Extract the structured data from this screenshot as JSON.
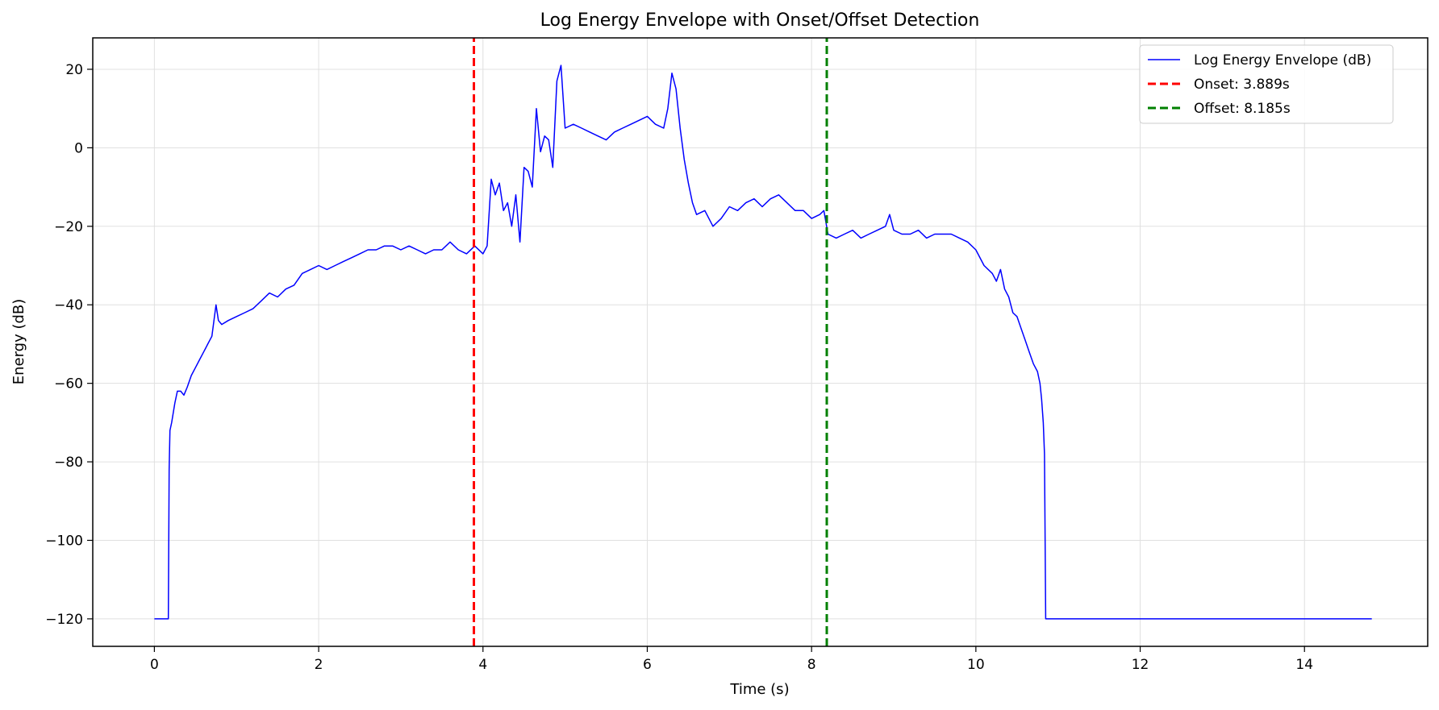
{
  "chart_data": {
    "type": "line",
    "title": "Log Energy Envelope with Onset/Offset Detection",
    "xlabel": "Time (s)",
    "ylabel": "Energy (dB)",
    "xlim": [
      -0.75,
      15.5
    ],
    "ylim": [
      -127,
      28
    ],
    "xticks": [
      0,
      2,
      4,
      6,
      8,
      10,
      12,
      14
    ],
    "xtick_labels": [
      "0",
      "2",
      "4",
      "6",
      "8",
      "10",
      "12",
      "14"
    ],
    "yticks": [
      20,
      0,
      -20,
      -40,
      -60,
      -80,
      -100,
      -120
    ],
    "ytick_labels": [
      "20",
      "0",
      "−20",
      "−40",
      "−60",
      "−80",
      "−100",
      "−120"
    ],
    "grid": true,
    "legend_position": "top-right",
    "colors": {
      "envelope": "#0000ff",
      "onset": "#ff0000",
      "offset": "#008000",
      "grid": "#e0e0e0",
      "axis": "#000000"
    },
    "series": [
      {
        "name": "Log Energy Envelope (dB)",
        "style": "solid",
        "x": [
          0,
          0.17,
          0.18,
          0.19,
          0.21,
          0.25,
          0.28,
          0.32,
          0.36,
          0.4,
          0.45,
          0.5,
          0.55,
          0.6,
          0.65,
          0.7,
          0.75,
          0.78,
          0.82,
          0.9,
          1.0,
          1.1,
          1.2,
          1.3,
          1.4,
          1.5,
          1.6,
          1.7,
          1.8,
          1.9,
          2.0,
          2.1,
          2.2,
          2.3,
          2.4,
          2.5,
          2.6,
          2.7,
          2.8,
          2.9,
          3.0,
          3.1,
          3.2,
          3.3,
          3.4,
          3.5,
          3.6,
          3.7,
          3.8,
          3.9,
          4.0,
          4.05,
          4.1,
          4.15,
          4.2,
          4.25,
          4.3,
          4.35,
          4.4,
          4.45,
          4.5,
          4.55,
          4.6,
          4.65,
          4.7,
          4.75,
          4.8,
          4.85,
          4.9,
          4.95,
          5.0,
          5.1,
          5.2,
          5.3,
          5.4,
          5.5,
          5.6,
          5.7,
          5.8,
          5.9,
          6.0,
          6.1,
          6.2,
          6.25,
          6.3,
          6.35,
          6.4,
          6.45,
          6.5,
          6.55,
          6.6,
          6.7,
          6.8,
          6.9,
          7.0,
          7.1,
          7.2,
          7.3,
          7.4,
          7.5,
          7.6,
          7.7,
          7.8,
          7.9,
          8.0,
          8.1,
          8.15,
          8.2,
          8.3,
          8.4,
          8.5,
          8.6,
          8.7,
          8.8,
          8.9,
          8.95,
          9.0,
          9.1,
          9.2,
          9.3,
          9.4,
          9.5,
          9.6,
          9.7,
          9.8,
          9.9,
          10.0,
          10.1,
          10.2,
          10.25,
          10.3,
          10.35,
          10.4,
          10.45,
          10.5,
          10.55,
          10.6,
          10.65,
          10.7,
          10.75,
          10.78,
          10.8,
          10.82,
          10.835,
          10.85,
          11.0,
          12.0,
          13.0,
          14.0,
          14.82
        ],
        "y": [
          -120,
          -120,
          -82,
          -72,
          -70,
          -65,
          -62,
          -62,
          -63,
          -61,
          -58,
          -56,
          -54,
          -52,
          -50,
          -48,
          -40,
          -44,
          -45,
          -44,
          -43,
          -42,
          -41,
          -39,
          -37,
          -38,
          -36,
          -35,
          -32,
          -31,
          -30,
          -31,
          -30,
          -29,
          -28,
          -27,
          -26,
          -26,
          -25,
          -25,
          -26,
          -25,
          -26,
          -27,
          -26,
          -26,
          -24,
          -26,
          -27,
          -25,
          -27,
          -25,
          -8,
          -12,
          -9,
          -16,
          -14,
          -20,
          -12,
          -24,
          -5,
          -6,
          -10,
          10,
          -1,
          3,
          2,
          -5,
          17,
          21,
          5,
          6,
          5,
          4,
          3,
          2,
          4,
          5,
          6,
          7,
          8,
          6,
          5,
          10,
          19,
          15,
          5,
          -3,
          -9,
          -14,
          -17,
          -16,
          -20,
          -18,
          -15,
          -16,
          -14,
          -13,
          -15,
          -13,
          -12,
          -14,
          -16,
          -16,
          -18,
          -17,
          -16,
          -22,
          -23,
          -22,
          -21,
          -23,
          -22,
          -21,
          -20,
          -17,
          -21,
          -22,
          -22,
          -21,
          -23,
          -22,
          -22,
          -22,
          -23,
          -24,
          -26,
          -30,
          -32,
          -34,
          -31,
          -36,
          -38,
          -42,
          -43,
          -46,
          -49,
          -52,
          -55,
          -57,
          -60,
          -64,
          -70,
          -78,
          -120,
          -120,
          -120,
          -120,
          -120,
          -120
        ]
      },
      {
        "name": "Onset: 3.889s",
        "style": "dashed",
        "x": [
          3.889,
          3.889
        ],
        "y": [
          -127,
          28
        ]
      },
      {
        "name": "Offset: 8.185s",
        "style": "dashed",
        "x": [
          8.185,
          8.185
        ],
        "y": [
          -127,
          28
        ]
      }
    ]
  }
}
